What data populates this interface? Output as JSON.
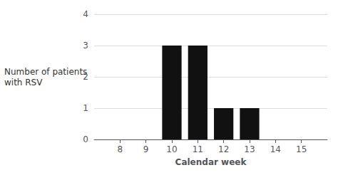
{
  "chart_data": {
    "type": "bar",
    "x": [
      8,
      9,
      10,
      11,
      12,
      13,
      14,
      15
    ],
    "values": [
      0,
      0,
      3,
      3,
      1,
      1,
      0,
      0
    ],
    "color": "#111111",
    "xlabel": "Calendar week",
    "ylabel": "Number of patients\nwith RSV",
    "xlim": [
      7.0,
      16.0
    ],
    "xticks": [
      8,
      9,
      10,
      11,
      12,
      13,
      14,
      15
    ],
    "ylim": [
      0,
      4
    ],
    "yticks": [
      0,
      1,
      2,
      3,
      4
    ],
    "grid": true
  }
}
